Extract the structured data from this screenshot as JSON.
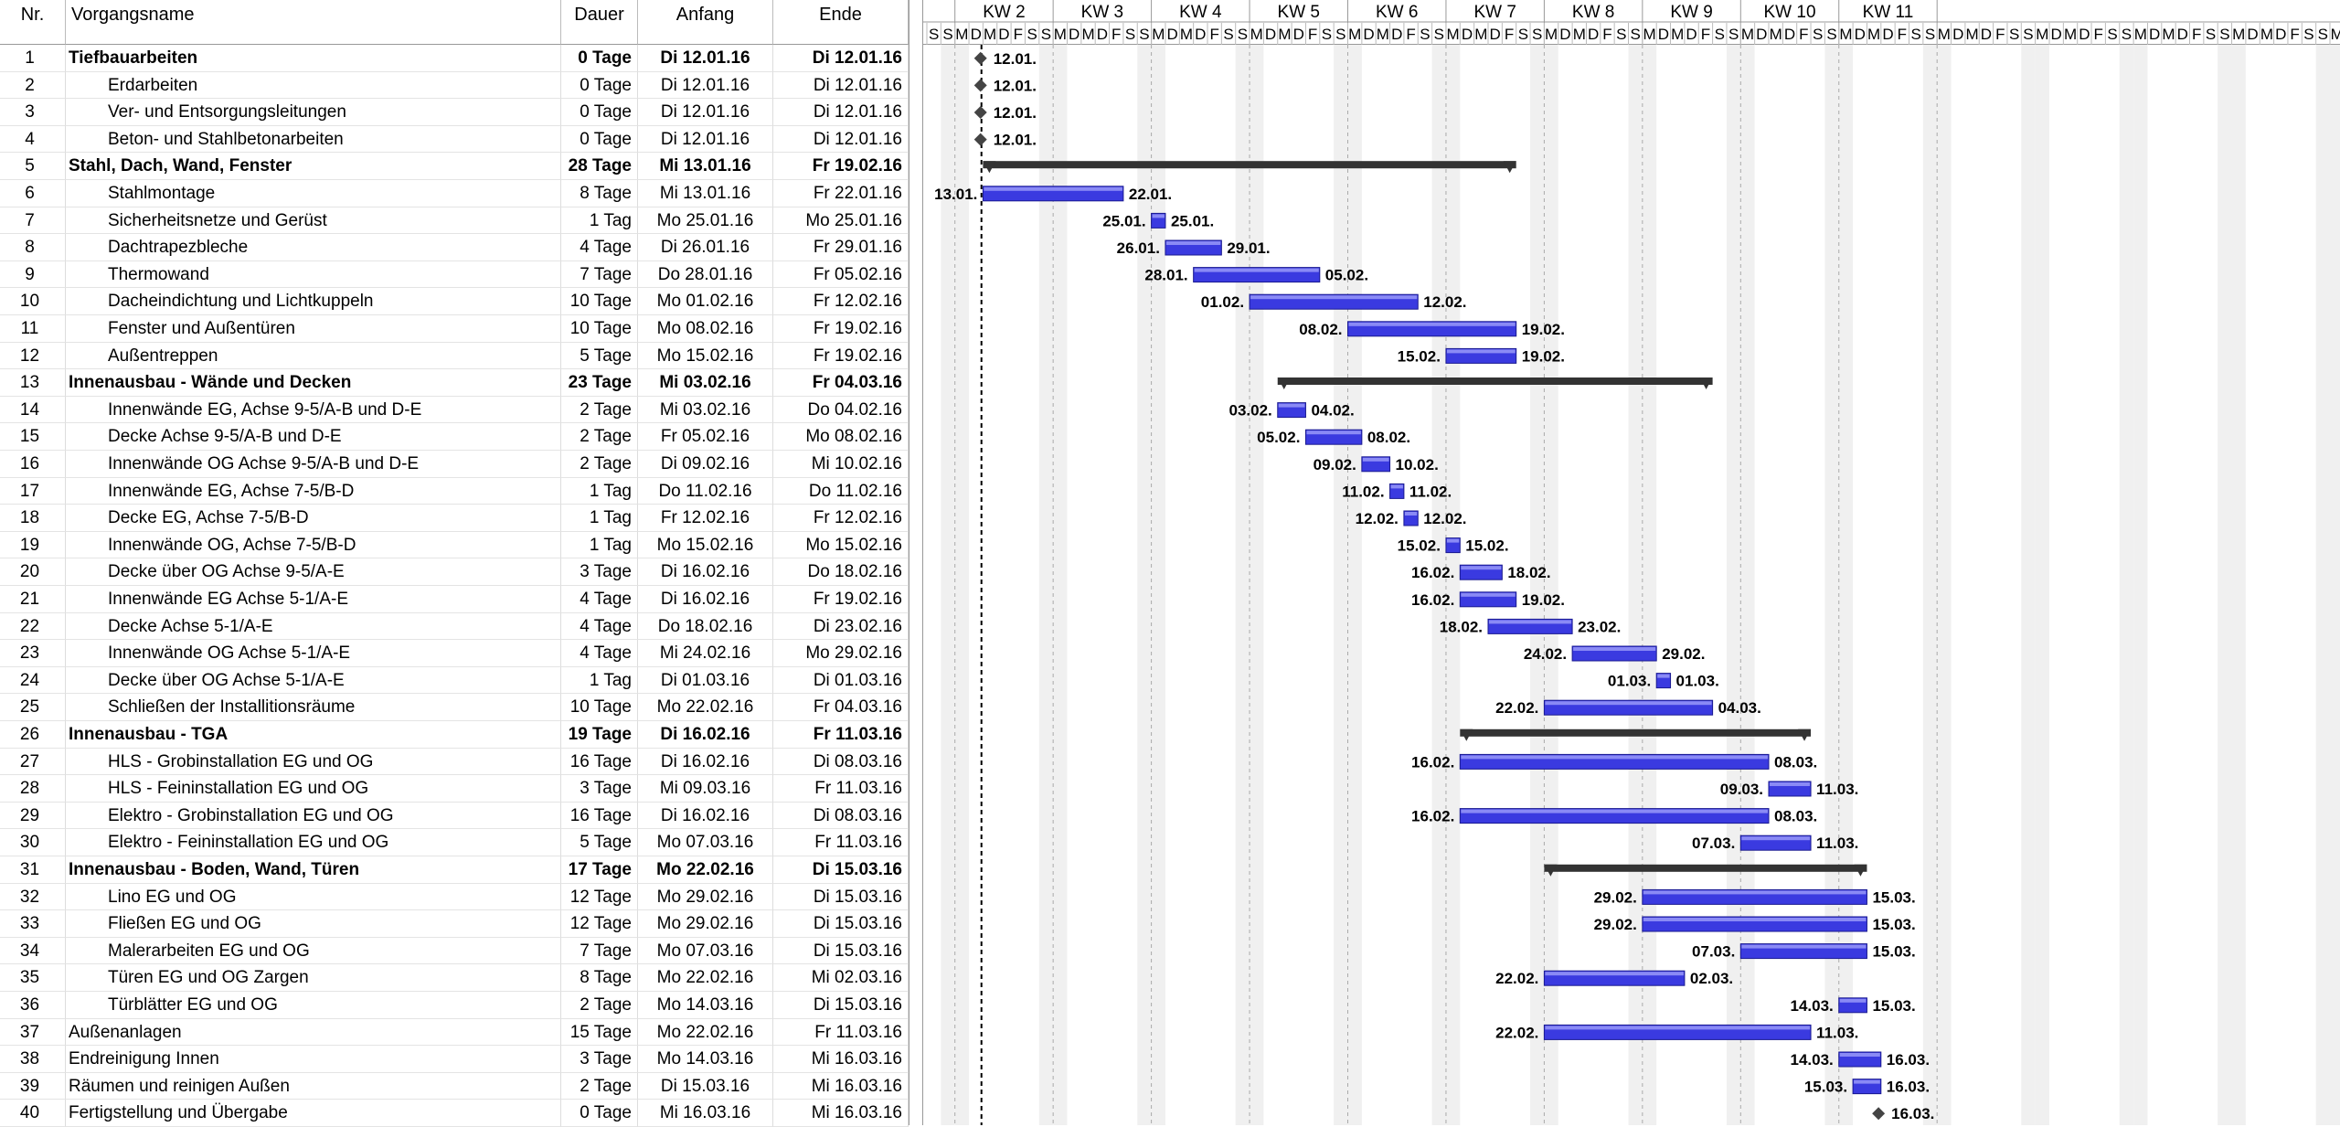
{
  "columns": {
    "nr": "Nr.",
    "name": "Vorgangsname",
    "duration": "Dauer",
    "start": "Anfang",
    "end": "Ende"
  },
  "weeks": [
    "KW 2",
    "KW 3",
    "KW 4",
    "KW 5",
    "KW 6",
    "KW 7",
    "KW 8",
    "KW 9",
    "KW 10",
    "KW 11"
  ],
  "day_letters": [
    "S",
    "S",
    "M",
    "D",
    "M",
    "D",
    "F"
  ],
  "colors": {
    "bar": "#3a3ae0",
    "summary": "#333333",
    "link": "#2a2ad0",
    "weekend": "#f0f0f0"
  },
  "chart_data": {
    "type": "gantt",
    "timeline_start": "2016-01-09",
    "status_date": "2016-01-12",
    "tasks": [
      {
        "nr": "1",
        "name": "Tiefbauarbeiten",
        "duration": "0 Tage",
        "start": "Di 12.01.16",
        "end": "Di 12.01.16",
        "s": "2016-01-12",
        "e": "2016-01-12",
        "kind": "milestone",
        "summary": true,
        "lstart": "",
        "lend": "12.01."
      },
      {
        "nr": "2",
        "name": "Erdarbeiten",
        "duration": "0 Tage",
        "start": "Di 12.01.16",
        "end": "Di 12.01.16",
        "s": "2016-01-12",
        "e": "2016-01-12",
        "kind": "milestone",
        "indent": 1,
        "lstart": "",
        "lend": "12.01."
      },
      {
        "nr": "3",
        "name": "Ver- und Entsorgungsleitungen",
        "duration": "0 Tage",
        "start": "Di 12.01.16",
        "end": "Di 12.01.16",
        "s": "2016-01-12",
        "e": "2016-01-12",
        "kind": "milestone",
        "indent": 1,
        "lstart": "",
        "lend": "12.01."
      },
      {
        "nr": "4",
        "name": "Beton- und Stahlbetonarbeiten",
        "duration": "0 Tage",
        "start": "Di 12.01.16",
        "end": "Di 12.01.16",
        "s": "2016-01-12",
        "e": "2016-01-12",
        "kind": "milestone",
        "indent": 1,
        "lstart": "",
        "lend": "12.01."
      },
      {
        "nr": "5",
        "name": "Stahl, Dach, Wand, Fenster",
        "duration": "28 Tage",
        "start": "Mi 13.01.16",
        "end": "Fr 19.02.16",
        "s": "2016-01-13",
        "e": "2016-02-19",
        "kind": "summary",
        "summary": true,
        "lstart": "",
        "lend": ""
      },
      {
        "nr": "6",
        "name": "Stahlmontage",
        "duration": "8 Tage",
        "start": "Mi 13.01.16",
        "end": "Fr 22.01.16",
        "s": "2016-01-13",
        "e": "2016-01-22",
        "kind": "task",
        "indent": 1,
        "lstart": "13.01.",
        "lend": "22.01."
      },
      {
        "nr": "7",
        "name": "Sicherheitsnetze und Gerüst",
        "duration": "1 Tag",
        "start": "Mo 25.01.16",
        "end": "Mo 25.01.16",
        "s": "2016-01-25",
        "e": "2016-01-25",
        "kind": "task",
        "indent": 1,
        "lstart": "25.01.",
        "lend": "25.01."
      },
      {
        "nr": "8",
        "name": "Dachtrapezbleche",
        "duration": "4 Tage",
        "start": "Di 26.01.16",
        "end": "Fr 29.01.16",
        "s": "2016-01-26",
        "e": "2016-01-29",
        "kind": "task",
        "indent": 1,
        "lstart": "26.01.",
        "lend": "29.01."
      },
      {
        "nr": "9",
        "name": "Thermowand",
        "duration": "7 Tage",
        "start": "Do 28.01.16",
        "end": "Fr 05.02.16",
        "s": "2016-01-28",
        "e": "2016-02-05",
        "kind": "task",
        "indent": 1,
        "lstart": "28.01.",
        "lend": "05.02."
      },
      {
        "nr": "10",
        "name": "Dacheindichtung und Lichtkuppeln",
        "duration": "10 Tage",
        "start": "Mo 01.02.16",
        "end": "Fr 12.02.16",
        "s": "2016-02-01",
        "e": "2016-02-12",
        "kind": "task",
        "indent": 1,
        "lstart": "01.02.",
        "lend": "12.02."
      },
      {
        "nr": "11",
        "name": "Fenster und Außentüren",
        "duration": "10 Tage",
        "start": "Mo 08.02.16",
        "end": "Fr 19.02.16",
        "s": "2016-02-08",
        "e": "2016-02-19",
        "kind": "task",
        "indent": 1,
        "lstart": "08.02.",
        "lend": "19.02."
      },
      {
        "nr": "12",
        "name": "Außentreppen",
        "duration": "5 Tage",
        "start": "Mo 15.02.16",
        "end": "Fr 19.02.16",
        "s": "2016-02-15",
        "e": "2016-02-19",
        "kind": "task",
        "indent": 1,
        "lstart": "15.02.",
        "lend": "19.02."
      },
      {
        "nr": "13",
        "name": "Innenausbau - Wände und Decken",
        "duration": "23 Tage",
        "start": "Mi 03.02.16",
        "end": "Fr 04.03.16",
        "s": "2016-02-03",
        "e": "2016-03-04",
        "kind": "summary",
        "summary": true,
        "lstart": "",
        "lend": ""
      },
      {
        "nr": "14",
        "name": "Innenwände EG, Achse 9-5/A-B und D-E",
        "duration": "2 Tage",
        "start": "Mi 03.02.16",
        "end": "Do 04.02.16",
        "s": "2016-02-03",
        "e": "2016-02-04",
        "kind": "task",
        "indent": 1,
        "lstart": "03.02.",
        "lend": "04.02."
      },
      {
        "nr": "15",
        "name": "Decke Achse 9-5/A-B und D-E",
        "duration": "2 Tage",
        "start": "Fr 05.02.16",
        "end": "Mo 08.02.16",
        "s": "2016-02-05",
        "e": "2016-02-08",
        "kind": "task",
        "indent": 1,
        "lstart": "05.02.",
        "lend": "08.02."
      },
      {
        "nr": "16",
        "name": "Innenwände OG Achse 9-5/A-B und D-E",
        "duration": "2 Tage",
        "start": "Di 09.02.16",
        "end": "Mi 10.02.16",
        "s": "2016-02-09",
        "e": "2016-02-10",
        "kind": "task",
        "indent": 1,
        "lstart": "09.02.",
        "lend": "10.02."
      },
      {
        "nr": "17",
        "name": "Innenwände EG, Achse 7-5/B-D",
        "duration": "1 Tag",
        "start": "Do 11.02.16",
        "end": "Do 11.02.16",
        "s": "2016-02-11",
        "e": "2016-02-11",
        "kind": "task",
        "indent": 1,
        "lstart": "11.02.",
        "lend": "11.02."
      },
      {
        "nr": "18",
        "name": "Decke EG, Achse 7-5/B-D",
        "duration": "1 Tag",
        "start": "Fr 12.02.16",
        "end": "Fr 12.02.16",
        "s": "2016-02-12",
        "e": "2016-02-12",
        "kind": "task",
        "indent": 1,
        "lstart": "12.02.",
        "lend": "12.02."
      },
      {
        "nr": "19",
        "name": "Innenwände OG, Achse 7-5/B-D",
        "duration": "1 Tag",
        "start": "Mo 15.02.16",
        "end": "Mo 15.02.16",
        "s": "2016-02-15",
        "e": "2016-02-15",
        "kind": "task",
        "indent": 1,
        "lstart": "15.02.",
        "lend": "15.02."
      },
      {
        "nr": "20",
        "name": "Decke über OG Achse 9-5/A-E",
        "duration": "3 Tage",
        "start": "Di 16.02.16",
        "end": "Do 18.02.16",
        "s": "2016-02-16",
        "e": "2016-02-18",
        "kind": "task",
        "indent": 1,
        "lstart": "16.02.",
        "lend": "18.02."
      },
      {
        "nr": "21",
        "name": "Innenwände EG Achse 5-1/A-E",
        "duration": "4 Tage",
        "start": "Di 16.02.16",
        "end": "Fr 19.02.16",
        "s": "2016-02-16",
        "e": "2016-02-19",
        "kind": "task",
        "indent": 1,
        "lstart": "16.02.",
        "lend": "19.02."
      },
      {
        "nr": "22",
        "name": "Decke Achse 5-1/A-E",
        "duration": "4 Tage",
        "start": "Do 18.02.16",
        "end": "Di 23.02.16",
        "s": "2016-02-18",
        "e": "2016-02-23",
        "kind": "task",
        "indent": 1,
        "lstart": "18.02.",
        "lend": "23.02."
      },
      {
        "nr": "23",
        "name": "Innenwände OG Achse 5-1/A-E",
        "duration": "4 Tage",
        "start": "Mi 24.02.16",
        "end": "Mo 29.02.16",
        "s": "2016-02-24",
        "e": "2016-02-29",
        "kind": "task",
        "indent": 1,
        "lstart": "24.02.",
        "lend": "29.02."
      },
      {
        "nr": "24",
        "name": "Decke über OG Achse 5-1/A-E",
        "duration": "1 Tag",
        "start": "Di 01.03.16",
        "end": "Di 01.03.16",
        "s": "2016-03-01",
        "e": "2016-03-01",
        "kind": "task",
        "indent": 1,
        "lstart": "01.03.",
        "lend": "01.03."
      },
      {
        "nr": "25",
        "name": "Schließen der Installitionsräume",
        "duration": "10 Tage",
        "start": "Mo 22.02.16",
        "end": "Fr 04.03.16",
        "s": "2016-02-22",
        "e": "2016-03-04",
        "kind": "task",
        "indent": 1,
        "lstart": "22.02.",
        "lend": "04.03."
      },
      {
        "nr": "26",
        "name": "Innenausbau - TGA",
        "duration": "19 Tage",
        "start": "Di 16.02.16",
        "end": "Fr 11.03.16",
        "s": "2016-02-16",
        "e": "2016-03-11",
        "kind": "summary",
        "summary": true,
        "lstart": "",
        "lend": ""
      },
      {
        "nr": "27",
        "name": "HLS - Grobinstallation EG und OG",
        "duration": "16 Tage",
        "start": "Di 16.02.16",
        "end": "Di 08.03.16",
        "s": "2016-02-16",
        "e": "2016-03-08",
        "kind": "task",
        "indent": 1,
        "lstart": "16.02.",
        "lend": "08.03."
      },
      {
        "nr": "28",
        "name": "HLS - Feininstallation EG und OG",
        "duration": "3 Tage",
        "start": "Mi 09.03.16",
        "end": "Fr 11.03.16",
        "s": "2016-03-09",
        "e": "2016-03-11",
        "kind": "task",
        "indent": 1,
        "lstart": "09.03.",
        "lend": "11.03."
      },
      {
        "nr": "29",
        "name": "Elektro - Grobinstallation EG und OG",
        "duration": "16 Tage",
        "start": "Di 16.02.16",
        "end": "Di 08.03.16",
        "s": "2016-02-16",
        "e": "2016-03-08",
        "kind": "task",
        "indent": 1,
        "lstart": "16.02.",
        "lend": "08.03."
      },
      {
        "nr": "30",
        "name": "Elektro - Feininstallation EG und OG",
        "duration": "5 Tage",
        "start": "Mo 07.03.16",
        "end": "Fr 11.03.16",
        "s": "2016-03-07",
        "e": "2016-03-11",
        "kind": "task",
        "indent": 1,
        "lstart": "07.03.",
        "lend": "11.03."
      },
      {
        "nr": "31",
        "name": "Innenausbau - Boden, Wand, Türen",
        "duration": "17 Tage",
        "start": "Mo 22.02.16",
        "end": "Di 15.03.16",
        "s": "2016-02-22",
        "e": "2016-03-15",
        "kind": "summary",
        "summary": true,
        "lstart": "",
        "lend": ""
      },
      {
        "nr": "32",
        "name": "Lino EG und OG",
        "duration": "12 Tage",
        "start": "Mo 29.02.16",
        "end": "Di 15.03.16",
        "s": "2016-02-29",
        "e": "2016-03-15",
        "kind": "task",
        "indent": 1,
        "lstart": "29.02.",
        "lend": "15.03."
      },
      {
        "nr": "33",
        "name": "Fließen EG und OG",
        "duration": "12 Tage",
        "start": "Mo 29.02.16",
        "end": "Di 15.03.16",
        "s": "2016-02-29",
        "e": "2016-03-15",
        "kind": "task",
        "indent": 1,
        "lstart": "29.02.",
        "lend": "15.03."
      },
      {
        "nr": "34",
        "name": "Malerarbeiten EG und OG",
        "duration": "7 Tage",
        "start": "Mo 07.03.16",
        "end": "Di 15.03.16",
        "s": "2016-03-07",
        "e": "2016-03-15",
        "kind": "task",
        "indent": 1,
        "lstart": "07.03.",
        "lend": "15.03."
      },
      {
        "nr": "35",
        "name": "Türen EG und OG Zargen",
        "duration": "8 Tage",
        "start": "Mo 22.02.16",
        "end": "Mi 02.03.16",
        "s": "2016-02-22",
        "e": "2016-03-02",
        "kind": "task",
        "indent": 1,
        "lstart": "22.02.",
        "lend": "02.03."
      },
      {
        "nr": "36",
        "name": "Türblätter EG und OG",
        "duration": "2 Tage",
        "start": "Mo 14.03.16",
        "end": "Di 15.03.16",
        "s": "2016-03-14",
        "e": "2016-03-15",
        "kind": "task",
        "indent": 1,
        "lstart": "14.03.",
        "lend": "15.03."
      },
      {
        "nr": "37",
        "name": "Außenanlagen",
        "duration": "15 Tage",
        "start": "Mo 22.02.16",
        "end": "Fr 11.03.16",
        "s": "2016-02-22",
        "e": "2016-03-11",
        "kind": "task",
        "lstart": "22.02.",
        "lend": "11.03."
      },
      {
        "nr": "38",
        "name": "Endreinigung Innen",
        "duration": "3 Tage",
        "start": "Mo 14.03.16",
        "end": "Mi 16.03.16",
        "s": "2016-03-14",
        "e": "2016-03-16",
        "kind": "task",
        "lstart": "14.03.",
        "lend": "16.03."
      },
      {
        "nr": "39",
        "name": "Räumen und reinigen Außen",
        "duration": "2 Tage",
        "start": "Di 15.03.16",
        "end": "Mi 16.03.16",
        "s": "2016-03-15",
        "e": "2016-03-16",
        "kind": "task",
        "lstart": "15.03.",
        "lend": "16.03."
      },
      {
        "nr": "40",
        "name": "Fertigstellung und Übergabe",
        "duration": "0 Tage",
        "start": "Mi 16.03.16",
        "end": "Mi 16.03.16",
        "s": "2016-03-16",
        "e": "2016-03-16",
        "kind": "milestone",
        "lstart": "",
        "lend": "16.03."
      }
    ]
  }
}
